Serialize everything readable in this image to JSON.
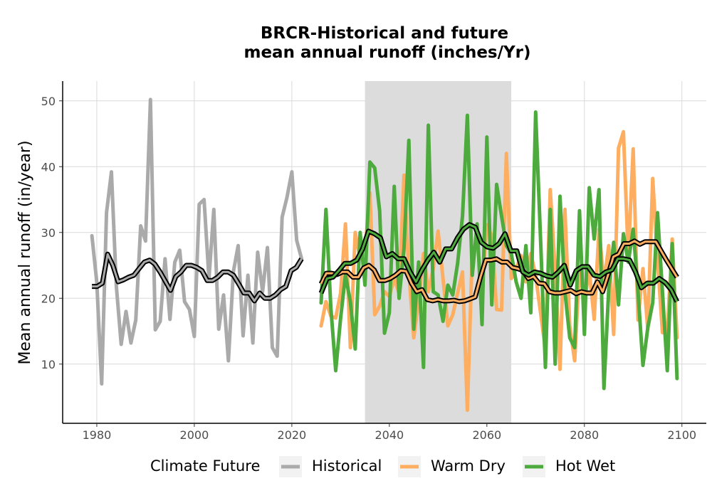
{
  "chart_data": {
    "type": "line",
    "title_line1": "BRCR-Historical and future",
    "title_line2": "mean annual runoff (inches/Yr)",
    "xlabel": "",
    "ylabel": "Mean annual runoff (in/year)",
    "xlim": [
      1973,
      2105
    ],
    "ylim": [
      1,
      53
    ],
    "x_ticks": [
      "1980",
      "2000",
      "2020",
      "2040",
      "2060",
      "2080",
      "2100"
    ],
    "y_ticks": [
      "10",
      "20",
      "30",
      "40",
      "50"
    ],
    "grid": true,
    "shaded_period": [
      2035,
      2065
    ],
    "legend": {
      "title": "Climate Future",
      "position": "bottom",
      "items": [
        "Historical",
        "Warm Dry",
        "Hot Wet"
      ]
    },
    "colors": {
      "Historical": "#aaaaaa",
      "Warm Dry": "#fdae61",
      "Hot Wet": "#4daa3c",
      "smooth": "#000000",
      "shade": "#dcdcdc"
    },
    "series": [
      {
        "name": "Historical",
        "x": [
          1979,
          1980,
          1981,
          1982,
          1983,
          1984,
          1985,
          1986,
          1987,
          1988,
          1989,
          1990,
          1991,
          1992,
          1993,
          1994,
          1995,
          1996,
          1997,
          1998,
          1999,
          2000,
          2001,
          2002,
          2003,
          2004,
          2005,
          2006,
          2007,
          2008,
          2009,
          2010,
          2011,
          2012,
          2013,
          2014,
          2015,
          2016,
          2017,
          2018,
          2019,
          2020,
          2021,
          2022
        ],
        "values": [
          29.5,
          22.5,
          7,
          33,
          39.2,
          22,
          13,
          18,
          13.2,
          16.7,
          31,
          28.7,
          50.2,
          15.2,
          16.5,
          26,
          16.8,
          25.5,
          27.3,
          19.5,
          18.3,
          14.2,
          34.3,
          35,
          23,
          33.5,
          15.3,
          20.5,
          10.5,
          24,
          28,
          14.3,
          23.5,
          13.2,
          27,
          21,
          27.7,
          12.5,
          11.2,
          32.3,
          35.3,
          39.2,
          28.8,
          26
        ],
        "smooth": [
          21.8,
          21.8,
          22.3,
          26.7,
          25,
          22.5,
          22.8,
          23.2,
          23.5,
          24.5,
          25.5,
          25.8,
          25.2,
          24,
          22.6,
          21.2,
          23.3,
          24,
          25,
          25,
          24.7,
          24.2,
          22.7,
          22.7,
          23.2,
          24,
          24,
          23.5,
          22.2,
          20.8,
          20.8,
          19.6,
          20.8,
          20,
          20,
          20.5,
          21.3,
          21.8,
          24.2,
          24.7,
          26
        ]
      },
      {
        "name": "Warm Dry",
        "x": [
          2026,
          2027,
          2028,
          2029,
          2030,
          2031,
          2032,
          2033,
          2034,
          2035,
          2036,
          2037,
          2038,
          2039,
          2040,
          2041,
          2042,
          2043,
          2044,
          2045,
          2046,
          2047,
          2048,
          2049,
          2050,
          2051,
          2052,
          2053,
          2054,
          2055,
          2056,
          2057,
          2058,
          2059,
          2060,
          2061,
          2062,
          2063,
          2064,
          2065,
          2066,
          2067,
          2068,
          2069,
          2070,
          2071,
          2072,
          2073,
          2074,
          2075,
          2076,
          2077,
          2078,
          2079,
          2080,
          2081,
          2082,
          2083,
          2084,
          2085,
          2086,
          2087,
          2088,
          2089,
          2090,
          2091,
          2092,
          2093,
          2094,
          2095,
          2096,
          2097,
          2098,
          2099
        ],
        "values": [
          15.8,
          19.5,
          17.3,
          17,
          20.8,
          31.3,
          12.5,
          30,
          26,
          27,
          36,
          17.5,
          18.8,
          21,
          20.3,
          23,
          20.7,
          38.7,
          24,
          14,
          19.5,
          26.8,
          21,
          24.5,
          30.2,
          23,
          15.8,
          17.5,
          20.8,
          24,
          3,
          27,
          28.5,
          22,
          31.2,
          29.5,
          18.3,
          18.2,
          42,
          23,
          24.5,
          26.5,
          22.5,
          26.8,
          23.5,
          17.8,
          12.2,
          36.5,
          24.3,
          9.2,
          33.5,
          15.8,
          10.5,
          24.5,
          19.5,
          24.3,
          16.8,
          30.5,
          22.3,
          28,
          14.5,
          42.8,
          45.3,
          26.3,
          42.7,
          16.7,
          24.5,
          15.3,
          38.2,
          25.8,
          14.8,
          14.7,
          29,
          14
        ],
        "smooth": [
          22.2,
          23.8,
          23.8,
          23.6,
          24,
          24,
          23.2,
          23.2,
          24.6,
          25,
          24.3,
          22.7,
          22.7,
          23,
          23.5,
          24.2,
          24.1,
          22.3,
          21,
          21.3,
          19.8,
          19.6,
          19.8,
          19.6,
          19.6,
          19.7,
          19.5,
          19.6,
          19.9,
          20.2,
          23.2,
          25.8,
          25.8,
          26,
          25.5,
          25.5,
          24.7,
          24.5,
          24.2,
          23,
          23.3,
          22.3,
          22.2,
          21,
          20.8,
          20.8,
          21,
          21.2,
          20.7,
          21,
          20.8,
          20.8,
          22.5,
          21,
          23.5,
          26.3,
          26.7,
          28.3,
          28.3,
          28.7,
          28.2,
          28.6,
          28.6,
          28.6,
          27.2,
          25.8,
          24.5,
          23.2
        ]
      },
      {
        "name": "Hot Wet",
        "x": [
          2026,
          2027,
          2028,
          2029,
          2030,
          2031,
          2032,
          2033,
          2034,
          2035,
          2036,
          2037,
          2038,
          2039,
          2040,
          2041,
          2042,
          2043,
          2044,
          2045,
          2046,
          2047,
          2048,
          2049,
          2050,
          2051,
          2052,
          2053,
          2054,
          2055,
          2056,
          2057,
          2058,
          2059,
          2060,
          2061,
          2062,
          2063,
          2064,
          2065,
          2066,
          2067,
          2068,
          2069,
          2070,
          2071,
          2072,
          2073,
          2074,
          2075,
          2076,
          2077,
          2078,
          2079,
          2080,
          2081,
          2082,
          2083,
          2084,
          2085,
          2086,
          2087,
          2088,
          2089,
          2090,
          2091,
          2092,
          2093,
          2094,
          2095,
          2096,
          2097,
          2098,
          2099
        ],
        "values": [
          19.3,
          33.5,
          18.5,
          9,
          17,
          23.5,
          19.5,
          12.3,
          30,
          22,
          40.7,
          39.8,
          33.3,
          14.7,
          17.8,
          37,
          20,
          27.5,
          44,
          15.3,
          25.5,
          9.5,
          46.3,
          21,
          20.5,
          16.5,
          22,
          20.5,
          25.3,
          32.5,
          47.8,
          23.5,
          31.3,
          16,
          44.5,
          19,
          37.3,
          32.5,
          28,
          26.8,
          22.5,
          20,
          28,
          17.8,
          48.3,
          29,
          9.5,
          33.5,
          10,
          35.5,
          21,
          14,
          12.5,
          33.3,
          14.5,
          36.8,
          29,
          36.5,
          6.3,
          21.5,
          28.5,
          19,
          29.8,
          25.5,
          30.5,
          21,
          9.8,
          15.5,
          19.3,
          33,
          21,
          9,
          28.3,
          7.8
        ],
        "smooth": [
          20.8,
          23,
          23.2,
          24.2,
          25.3,
          25.3,
          25.8,
          27.5,
          30.2,
          29.8,
          29.2,
          26.3,
          26.8,
          26,
          26,
          24,
          22.5,
          24.3,
          25.8,
          27,
          25.5,
          27.5,
          27.5,
          29.2,
          30.5,
          31.2,
          30.8,
          28.5,
          27.8,
          27.6,
          28.3,
          29.8,
          27.2,
          27.2,
          24,
          23.5,
          24,
          23.8,
          23.4,
          23.2,
          24,
          25,
          22,
          24.2,
          24.8,
          24.8,
          23.5,
          23.3,
          24,
          24.3,
          26,
          26,
          25.8,
          24,
          21.6,
          22.3,
          22.3,
          23,
          22.4,
          21.3,
          19.5
        ]
      }
    ]
  }
}
